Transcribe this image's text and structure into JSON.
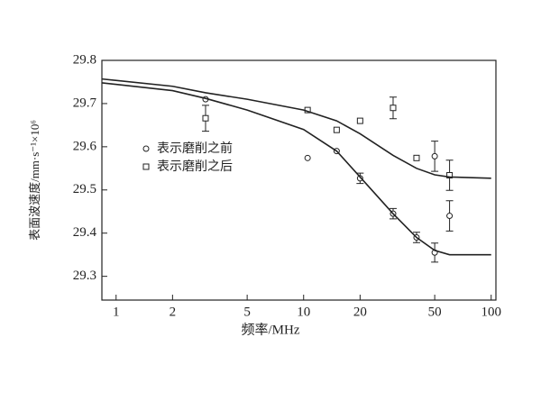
{
  "chart_data": {
    "type": "scatter",
    "x_label": "频率/MHz",
    "y_label": "表面波速度/mm·s⁻¹×10⁶",
    "log_x": true,
    "xlim": [
      0.84,
      106
    ],
    "xticks": [
      1,
      2,
      5,
      10,
      20,
      50,
      100
    ],
    "ylim": [
      29.245,
      29.8
    ],
    "yticks": [
      29.3,
      29.4,
      29.5,
      29.6,
      29.7,
      29.8
    ],
    "legend": "upper-left",
    "series": [
      {
        "name": "表示磨削之前",
        "marker": "circle",
        "color": "#222",
        "x": [
          3,
          10.5,
          15,
          20,
          30,
          40,
          50,
          60,
          50
        ],
        "values": [
          29.71,
          29.574,
          29.59,
          29.527,
          29.445,
          29.39,
          29.355,
          29.44,
          29.578
        ],
        "errors": [
          null,
          null,
          null,
          0.012,
          0.012,
          0.012,
          0.022,
          0.035,
          0.035
        ]
      },
      {
        "name": "表示磨削之后",
        "marker": "square",
        "color": "#222",
        "x": [
          3,
          10.5,
          15,
          20,
          30,
          40,
          60
        ],
        "values": [
          29.666,
          29.685,
          29.639,
          29.66,
          29.69,
          29.574,
          29.534
        ],
        "errors": [
          0.03,
          null,
          null,
          null,
          0.025,
          null,
          0.035
        ]
      },
      {
        "marker": "line",
        "color": "#222",
        "x": [
          0.84,
          2,
          3,
          5,
          10,
          15,
          20,
          30,
          40,
          50,
          60,
          100
        ],
        "values": [
          29.757,
          29.74,
          29.725,
          29.71,
          29.685,
          29.66,
          29.63,
          29.58,
          29.55,
          29.535,
          29.53,
          29.527
        ]
      },
      {
        "marker": "line",
        "color": "#222",
        "x": [
          0.84,
          2,
          3,
          5,
          10,
          15,
          20,
          30,
          40,
          50,
          60,
          100
        ],
        "values": [
          29.748,
          29.73,
          29.712,
          29.685,
          29.64,
          29.59,
          29.53,
          29.445,
          29.39,
          29.36,
          29.35,
          29.35
        ]
      }
    ]
  }
}
